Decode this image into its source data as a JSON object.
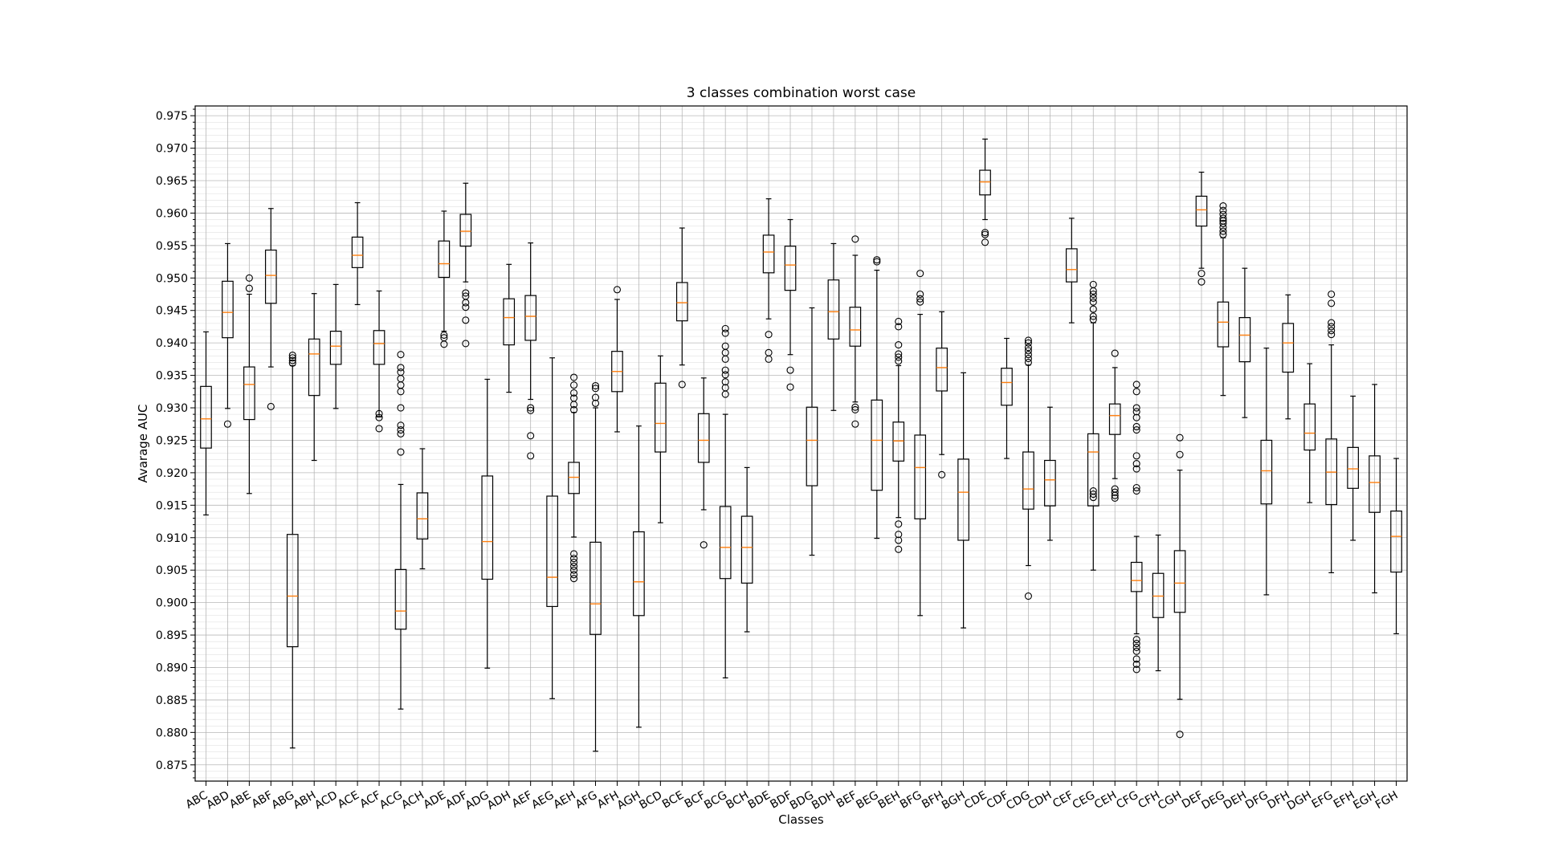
{
  "chart_data": {
    "type": "box",
    "title": "3 classes combination worst case",
    "xlabel": "Classes",
    "ylabel": "Avarage AUC",
    "ylim": [
      0.8725,
      0.9765
    ],
    "yticks": [
      "0.875",
      "0.880",
      "0.885",
      "0.890",
      "0.895",
      "0.900",
      "0.905",
      "0.910",
      "0.915",
      "0.920",
      "0.925",
      "0.930",
      "0.935",
      "0.940",
      "0.945",
      "0.950",
      "0.955",
      "0.960",
      "0.965",
      "0.970",
      "0.975"
    ],
    "grid": true,
    "colors": {
      "box": "#000000",
      "median": "#ff7f0e",
      "grid": "#b0b0b0"
    },
    "categories": [
      "ABC",
      "ABD",
      "ABE",
      "ABF",
      "ABG",
      "ABH",
      "ACD",
      "ACE",
      "ACF",
      "ACG",
      "ACH",
      "ADE",
      "ADF",
      "ADG",
      "ADH",
      "AEF",
      "AEG",
      "AEH",
      "AFG",
      "AFH",
      "AGH",
      "BCD",
      "BCE",
      "BCF",
      "BCG",
      "BCH",
      "BDE",
      "BDF",
      "BDG",
      "BDH",
      "BEF",
      "BEG",
      "BEH",
      "BFG",
      "BFH",
      "BGH",
      "CDE",
      "CDF",
      "CDG",
      "CDH",
      "CEF",
      "CEG",
      "CEH",
      "CFG",
      "CFH",
      "CGH",
      "DEF",
      "DEG",
      "DEH",
      "DFG",
      "DFH",
      "DGH",
      "EFG",
      "EFH",
      "EGH",
      "FGH"
    ],
    "boxes": [
      {
        "whislo": 0.9135,
        "q1": 0.9238,
        "med": 0.9283,
        "q3": 0.9333,
        "whishi": 0.9417,
        "fliers": []
      },
      {
        "whislo": 0.9299,
        "q1": 0.9408,
        "med": 0.9447,
        "q3": 0.9495,
        "whishi": 0.9553,
        "fliers": [
          0.9275
        ]
      },
      {
        "whislo": 0.9168,
        "q1": 0.9282,
        "med": 0.9336,
        "q3": 0.9363,
        "whishi": 0.9475,
        "fliers": [
          0.9484,
          0.95
        ]
      },
      {
        "whislo": 0.9363,
        "q1": 0.9461,
        "med": 0.9504,
        "q3": 0.9543,
        "whishi": 0.9607,
        "fliers": [
          0.9302
        ]
      },
      {
        "whislo": 0.8776,
        "q1": 0.8932,
        "med": 0.901,
        "q3": 0.9105,
        "whishi": 0.9365,
        "fliers": [
          0.9369,
          0.9373,
          0.9377,
          0.9381
        ]
      },
      {
        "whislo": 0.9219,
        "q1": 0.9319,
        "med": 0.9383,
        "q3": 0.9406,
        "whishi": 0.9476,
        "fliers": []
      },
      {
        "whislo": 0.9299,
        "q1": 0.9367,
        "med": 0.9395,
        "q3": 0.9418,
        "whishi": 0.949,
        "fliers": []
      },
      {
        "whislo": 0.9459,
        "q1": 0.9516,
        "med": 0.9535,
        "q3": 0.9563,
        "whishi": 0.9616,
        "fliers": []
      },
      {
        "whislo": 0.9286,
        "q1": 0.9367,
        "med": 0.9399,
        "q3": 0.9419,
        "whishi": 0.948,
        "fliers": [
          0.9268,
          0.9285,
          0.9291
        ]
      },
      {
        "whislo": 0.8836,
        "q1": 0.8959,
        "med": 0.8987,
        "q3": 0.9051,
        "whishi": 0.9182,
        "fliers": [
          0.9232,
          0.926,
          0.9266,
          0.9273,
          0.93,
          0.9325,
          0.9335,
          0.9345,
          0.9355,
          0.9362,
          0.9382
        ]
      },
      {
        "whislo": 0.9052,
        "q1": 0.9098,
        "med": 0.9129,
        "q3": 0.9169,
        "whishi": 0.9237,
        "fliers": []
      },
      {
        "whislo": 0.9418,
        "q1": 0.9501,
        "med": 0.9522,
        "q3": 0.9557,
        "whishi": 0.9603,
        "fliers": [
          0.9398,
          0.9408,
          0.9412
        ]
      },
      {
        "whislo": 0.9494,
        "q1": 0.9549,
        "med": 0.9572,
        "q3": 0.9598,
        "whishi": 0.9646,
        "fliers": [
          0.9399,
          0.9435,
          0.9455,
          0.9462,
          0.9472,
          0.9477
        ]
      },
      {
        "whislo": 0.8899,
        "q1": 0.9036,
        "med": 0.9094,
        "q3": 0.9195,
        "whishi": 0.9344,
        "fliers": []
      },
      {
        "whislo": 0.9324,
        "q1": 0.9397,
        "med": 0.9439,
        "q3": 0.9468,
        "whishi": 0.9521,
        "fliers": []
      },
      {
        "whislo": 0.9313,
        "q1": 0.9404,
        "med": 0.9441,
        "q3": 0.9473,
        "whishi": 0.9554,
        "fliers": [
          0.9226,
          0.9257,
          0.9296,
          0.93
        ]
      },
      {
        "whislo": 0.8852,
        "q1": 0.8994,
        "med": 0.9039,
        "q3": 0.9164,
        "whishi": 0.9377,
        "fliers": []
      },
      {
        "whislo": 0.9101,
        "q1": 0.9168,
        "med": 0.9193,
        "q3": 0.9216,
        "whishi": 0.9293,
        "fliers": [
          0.9037,
          0.9043,
          0.905,
          0.9056,
          0.9062,
          0.9068,
          0.9075,
          0.9297,
          0.9305,
          0.9315,
          0.9323,
          0.9335,
          0.9347
        ]
      },
      {
        "whislo": 0.8771,
        "q1": 0.8951,
        "med": 0.8998,
        "q3": 0.9093,
        "whishi": 0.93,
        "fliers": [
          0.9307,
          0.9316,
          0.933,
          0.9334
        ]
      },
      {
        "whislo": 0.9263,
        "q1": 0.9325,
        "med": 0.9356,
        "q3": 0.9387,
        "whishi": 0.9467,
        "fliers": [
          0.9482
        ]
      },
      {
        "whislo": 0.8808,
        "q1": 0.898,
        "med": 0.9032,
        "q3": 0.9109,
        "whishi": 0.9272,
        "fliers": []
      },
      {
        "whislo": 0.9123,
        "q1": 0.9232,
        "med": 0.9276,
        "q3": 0.9338,
        "whishi": 0.938,
        "fliers": []
      },
      {
        "whislo": 0.9366,
        "q1": 0.9434,
        "med": 0.9462,
        "q3": 0.9493,
        "whishi": 0.9577,
        "fliers": [
          0.9336
        ]
      },
      {
        "whislo": 0.9143,
        "q1": 0.9216,
        "med": 0.925,
        "q3": 0.9291,
        "whishi": 0.9346,
        "fliers": [
          0.9089
        ]
      },
      {
        "whislo": 0.8884,
        "q1": 0.9037,
        "med": 0.9085,
        "q3": 0.9148,
        "whishi": 0.929,
        "fliers": [
          0.9321,
          0.9331,
          0.934,
          0.9351,
          0.9358,
          0.9375,
          0.9385,
          0.9395,
          0.9415,
          0.9422
        ]
      },
      {
        "whislo": 0.8955,
        "q1": 0.903,
        "med": 0.9085,
        "q3": 0.9133,
        "whishi": 0.9208,
        "fliers": []
      },
      {
        "whislo": 0.9437,
        "q1": 0.9508,
        "med": 0.954,
        "q3": 0.9566,
        "whishi": 0.9622,
        "fliers": [
          0.9375,
          0.9385,
          0.9413
        ]
      },
      {
        "whislo": 0.9382,
        "q1": 0.9481,
        "med": 0.952,
        "q3": 0.9549,
        "whishi": 0.959,
        "fliers": [
          0.9332,
          0.9358
        ]
      },
      {
        "whislo": 0.9073,
        "q1": 0.918,
        "med": 0.925,
        "q3": 0.9301,
        "whishi": 0.9454,
        "fliers": []
      },
      {
        "whislo": 0.9296,
        "q1": 0.9406,
        "med": 0.9448,
        "q3": 0.9497,
        "whishi": 0.9553,
        "fliers": []
      },
      {
        "whislo": 0.9309,
        "q1": 0.9395,
        "med": 0.942,
        "q3": 0.9455,
        "whishi": 0.9535,
        "fliers": [
          0.9275,
          0.9297,
          0.9301,
          0.956
        ]
      },
      {
        "whislo": 0.9099,
        "q1": 0.9173,
        "med": 0.925,
        "q3": 0.9312,
        "whishi": 0.9512,
        "fliers": [
          0.9525,
          0.9528
        ]
      },
      {
        "whislo": 0.9131,
        "q1": 0.9218,
        "med": 0.9249,
        "q3": 0.9278,
        "whishi": 0.9365,
        "fliers": [
          0.9082,
          0.9096,
          0.9105,
          0.9121,
          0.9372,
          0.9378,
          0.9383,
          0.9397,
          0.9425,
          0.9433
        ]
      },
      {
        "whislo": 0.898,
        "q1": 0.9129,
        "med": 0.9208,
        "q3": 0.9258,
        "whishi": 0.9444,
        "fliers": [
          0.9463,
          0.9468,
          0.9475,
          0.9507
        ]
      },
      {
        "whislo": 0.9228,
        "q1": 0.9326,
        "med": 0.9362,
        "q3": 0.9392,
        "whishi": 0.9448,
        "fliers": [
          0.9197
        ]
      },
      {
        "whislo": 0.8961,
        "q1": 0.9096,
        "med": 0.917,
        "q3": 0.9221,
        "whishi": 0.9354,
        "fliers": []
      },
      {
        "whislo": 0.959,
        "q1": 0.9628,
        "med": 0.9648,
        "q3": 0.9666,
        "whishi": 0.9714,
        "fliers": [
          0.9555,
          0.9567,
          0.957
        ]
      },
      {
        "whislo": 0.9222,
        "q1": 0.9304,
        "med": 0.9339,
        "q3": 0.9361,
        "whishi": 0.9407,
        "fliers": []
      },
      {
        "whislo": 0.9057,
        "q1": 0.9144,
        "med": 0.9175,
        "q3": 0.9232,
        "whishi": 0.9366,
        "fliers": [
          0.901,
          0.937,
          0.9376,
          0.9382,
          0.9388,
          0.9393,
          0.94,
          0.9404
        ]
      },
      {
        "whislo": 0.9096,
        "q1": 0.9149,
        "med": 0.9189,
        "q3": 0.9219,
        "whishi": 0.9301,
        "fliers": []
      },
      {
        "whislo": 0.9431,
        "q1": 0.9494,
        "med": 0.9513,
        "q3": 0.9545,
        "whishi": 0.9592,
        "fliers": []
      },
      {
        "whislo": 0.905,
        "q1": 0.9149,
        "med": 0.9232,
        "q3": 0.926,
        "whishi": 0.9431,
        "fliers": [
          0.9162,
          0.9167,
          0.9172,
          0.9436,
          0.9441,
          0.9452,
          0.9463,
          0.9469,
          0.9475,
          0.948,
          0.949
        ]
      },
      {
        "whislo": 0.9191,
        "q1": 0.9259,
        "med": 0.9288,
        "q3": 0.9306,
        "whishi": 0.9362,
        "fliers": [
          0.9161,
          0.9165,
          0.917,
          0.9175,
          0.9384
        ]
      },
      {
        "whislo": 0.8952,
        "q1": 0.9017,
        "med": 0.9034,
        "q3": 0.9062,
        "whishi": 0.9102,
        "fliers": [
          0.8897,
          0.8905,
          0.8913,
          0.8925,
          0.8931,
          0.8937,
          0.8943,
          0.9172,
          0.9177,
          0.9206,
          0.9214,
          0.9226,
          0.9266,
          0.9271,
          0.9285,
          0.9294,
          0.93,
          0.9325,
          0.9336
        ]
      },
      {
        "whislo": 0.8895,
        "q1": 0.8977,
        "med": 0.901,
        "q3": 0.9045,
        "whishi": 0.9104,
        "fliers": []
      },
      {
        "whislo": 0.8851,
        "q1": 0.8985,
        "med": 0.903,
        "q3": 0.908,
        "whishi": 0.9204,
        "fliers": [
          0.8797,
          0.9228,
          0.9254
        ]
      },
      {
        "whislo": 0.9515,
        "q1": 0.958,
        "med": 0.9605,
        "q3": 0.9626,
        "whishi": 0.9663,
        "fliers": [
          0.9494,
          0.9507
        ]
      },
      {
        "whislo": 0.9319,
        "q1": 0.9394,
        "med": 0.9432,
        "q3": 0.9463,
        "whishi": 0.9562,
        "fliers": [
          0.9567,
          0.9572,
          0.9578,
          0.9584,
          0.9588,
          0.9592,
          0.9598,
          0.9604,
          0.9611
        ]
      },
      {
        "whislo": 0.9285,
        "q1": 0.9371,
        "med": 0.9412,
        "q3": 0.9439,
        "whishi": 0.9515,
        "fliers": []
      },
      {
        "whislo": 0.9012,
        "q1": 0.9152,
        "med": 0.9203,
        "q3": 0.925,
        "whishi": 0.9392,
        "fliers": []
      },
      {
        "whislo": 0.9283,
        "q1": 0.9355,
        "med": 0.94,
        "q3": 0.943,
        "whishi": 0.9474,
        "fliers": []
      },
      {
        "whislo": 0.9154,
        "q1": 0.9235,
        "med": 0.9261,
        "q3": 0.9306,
        "whishi": 0.9368,
        "fliers": []
      },
      {
        "whislo": 0.9046,
        "q1": 0.9151,
        "med": 0.9201,
        "q3": 0.9252,
        "whishi": 0.9397,
        "fliers": [
          0.9413,
          0.9419,
          0.9425,
          0.9431,
          0.9461,
          0.9475
        ]
      },
      {
        "whislo": 0.9096,
        "q1": 0.9176,
        "med": 0.9206,
        "q3": 0.9239,
        "whishi": 0.9318,
        "fliers": []
      },
      {
        "whislo": 0.9015,
        "q1": 0.9139,
        "med": 0.9185,
        "q3": 0.9226,
        "whishi": 0.9336,
        "fliers": []
      },
      {
        "whislo": 0.8952,
        "q1": 0.9047,
        "med": 0.9102,
        "q3": 0.9141,
        "whishi": 0.9222,
        "fliers": []
      }
    ]
  }
}
